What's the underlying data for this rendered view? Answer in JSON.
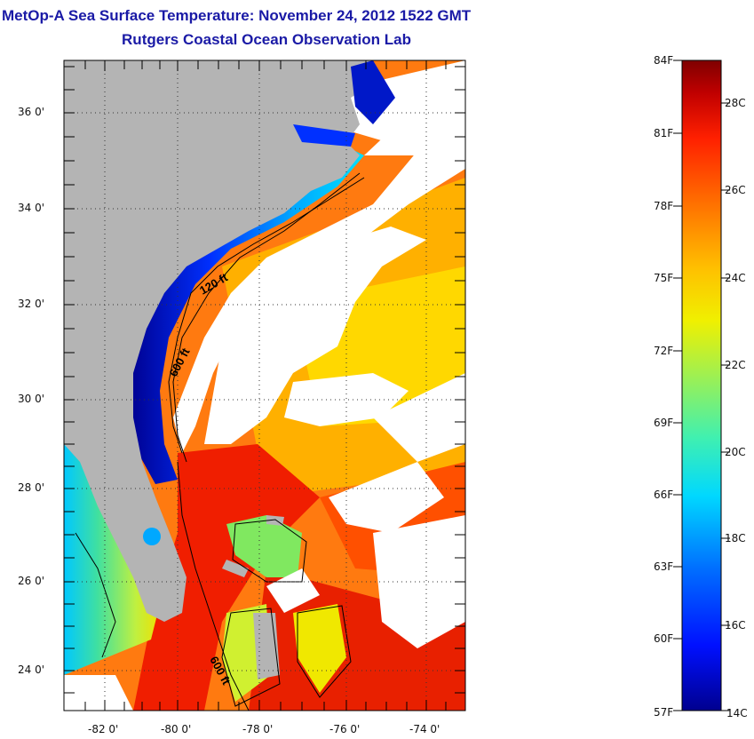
{
  "header": {
    "title_line1": "MetOp-A Sea Surface Temperature:  November 24, 2012 1522 GMT",
    "title_line2": "Rutgers Coastal Ocean Observation Lab"
  },
  "map": {
    "lat_ticks": [
      "36 0'",
      "34 0'",
      "32 0'",
      "30 0'",
      "28 0'",
      "26 0'",
      "24 0'"
    ],
    "lon_ticks": [
      "-82 0'",
      "-80 0'",
      "-78 0'",
      "-76 0'",
      "-74 0'"
    ],
    "contour_labels": [
      "120 ft",
      "600 ft",
      "600 ft"
    ],
    "colors": {
      "land": "#b4b4b4",
      "cloud": "#ffffff"
    }
  },
  "colorbar": {
    "fahrenheit_labels": [
      "84F",
      "81F",
      "78F",
      "75F",
      "72F",
      "69F",
      "66F",
      "63F",
      "60F",
      "57F"
    ],
    "celsius_labels": [
      "28C",
      "26C",
      "24C",
      "22C",
      "20C",
      "18C",
      "16C",
      "14C"
    ],
    "colors": [
      "#7f0000",
      "#c80000",
      "#ff2a00",
      "#ff7a00",
      "#ffc400",
      "#f0f000",
      "#a8f050",
      "#40e0a0",
      "#00e8ff",
      "#0090ff",
      "#0030ff",
      "#00008f"
    ]
  }
}
